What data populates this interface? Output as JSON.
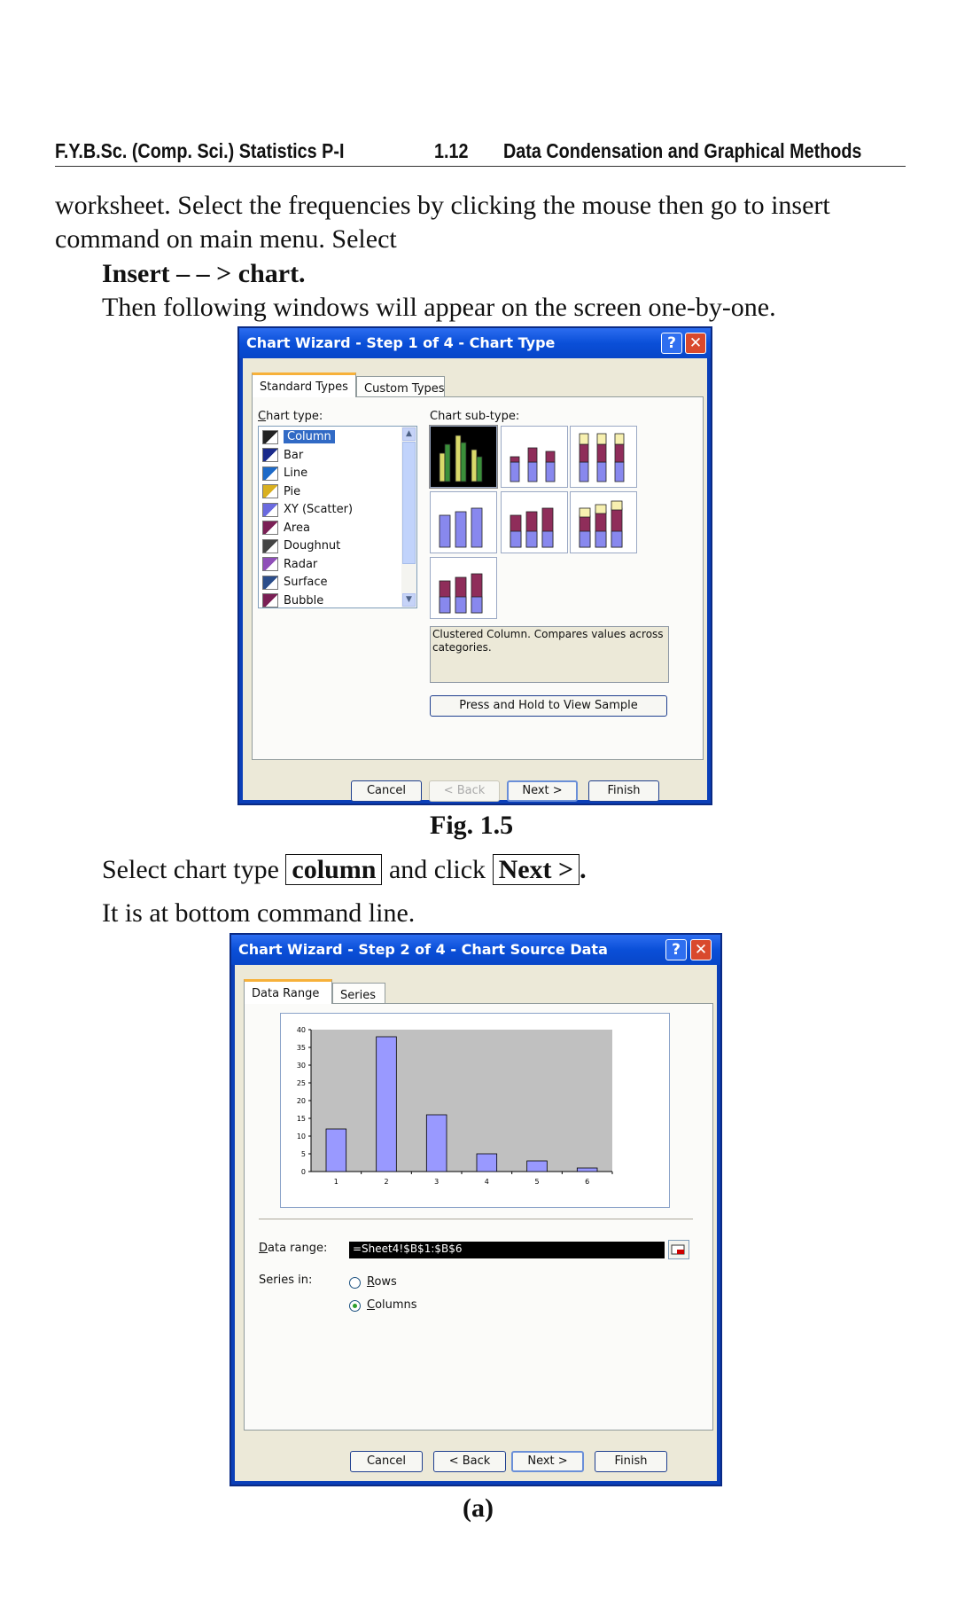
{
  "header": {
    "left": "F.Y.B.Sc. (Comp. Sci.) Statistics P-I",
    "page": "1.12",
    "right": "Data Condensation and Graphical Methods"
  },
  "body": {
    "line1": "worksheet. Select the frequencies by clicking the mouse then go to insert",
    "line2": "command on main menu. Select",
    "line3": "Insert – – > chart.",
    "line4": "Then following windows will appear on the screen one-by-one.",
    "fig1_caption": "Fig. 1.5",
    "select_prefix": "Select chart type",
    "select_box1": "column",
    "select_mid": "and click",
    "select_box2": "Next >",
    "select_suffix": ".",
    "bottom_line": "It is at bottom command line.",
    "fig2_caption": "(a)"
  },
  "dialog1": {
    "title": "Chart Wizard - Step 1 of 4 - Chart Type",
    "help": "?",
    "close": "✕",
    "tabs": [
      "Standard Types",
      "Custom Types"
    ],
    "chart_type_label": "Chart type:",
    "chart_subtype_label": "Chart sub-type:",
    "chart_types": [
      "Column",
      "Bar",
      "Line",
      "Pie",
      "XY (Scatter)",
      "Area",
      "Doughnut",
      "Radar",
      "Surface",
      "Bubble"
    ],
    "selected_type": "Column",
    "description": "Clustered Column. Compares values across categories.",
    "sample_button": "Press and Hold to View Sample",
    "buttons": {
      "cancel": "Cancel",
      "back": "< Back",
      "next": "Next >",
      "finish": "Finish"
    }
  },
  "dialog2": {
    "title": "Chart Wizard - Step 2 of 4 - Chart Source Data",
    "help": "?",
    "close": "✕",
    "tabs": [
      "Data Range",
      "Series"
    ],
    "data_range_label": "Data range:",
    "data_range_value": "=Sheet4!$B$1:$B$6",
    "series_in_label": "Series in:",
    "series_options": [
      "Rows",
      "Columns"
    ],
    "series_selected": "Columns",
    "buttons": {
      "cancel": "Cancel",
      "back": "< Back",
      "next": "Next >",
      "finish": "Finish"
    }
  },
  "chart_data": {
    "type": "bar",
    "categories": [
      "1",
      "2",
      "3",
      "4",
      "5",
      "6"
    ],
    "values": [
      12,
      38,
      16,
      5,
      3,
      1
    ],
    "ylim": [
      0,
      40
    ],
    "yticks": [
      "0",
      "5",
      "10",
      "15",
      "20",
      "25",
      "30",
      "35",
      "40"
    ],
    "bar_color": "#9999ff",
    "plot_background": "#c0c0c0",
    "grid": false,
    "legend": "none"
  },
  "colors": {
    "titlebar": "#0a4fd8",
    "dialog_face": "#ece9d8",
    "selection": "#316ac5",
    "close_button": "#d9492d"
  }
}
